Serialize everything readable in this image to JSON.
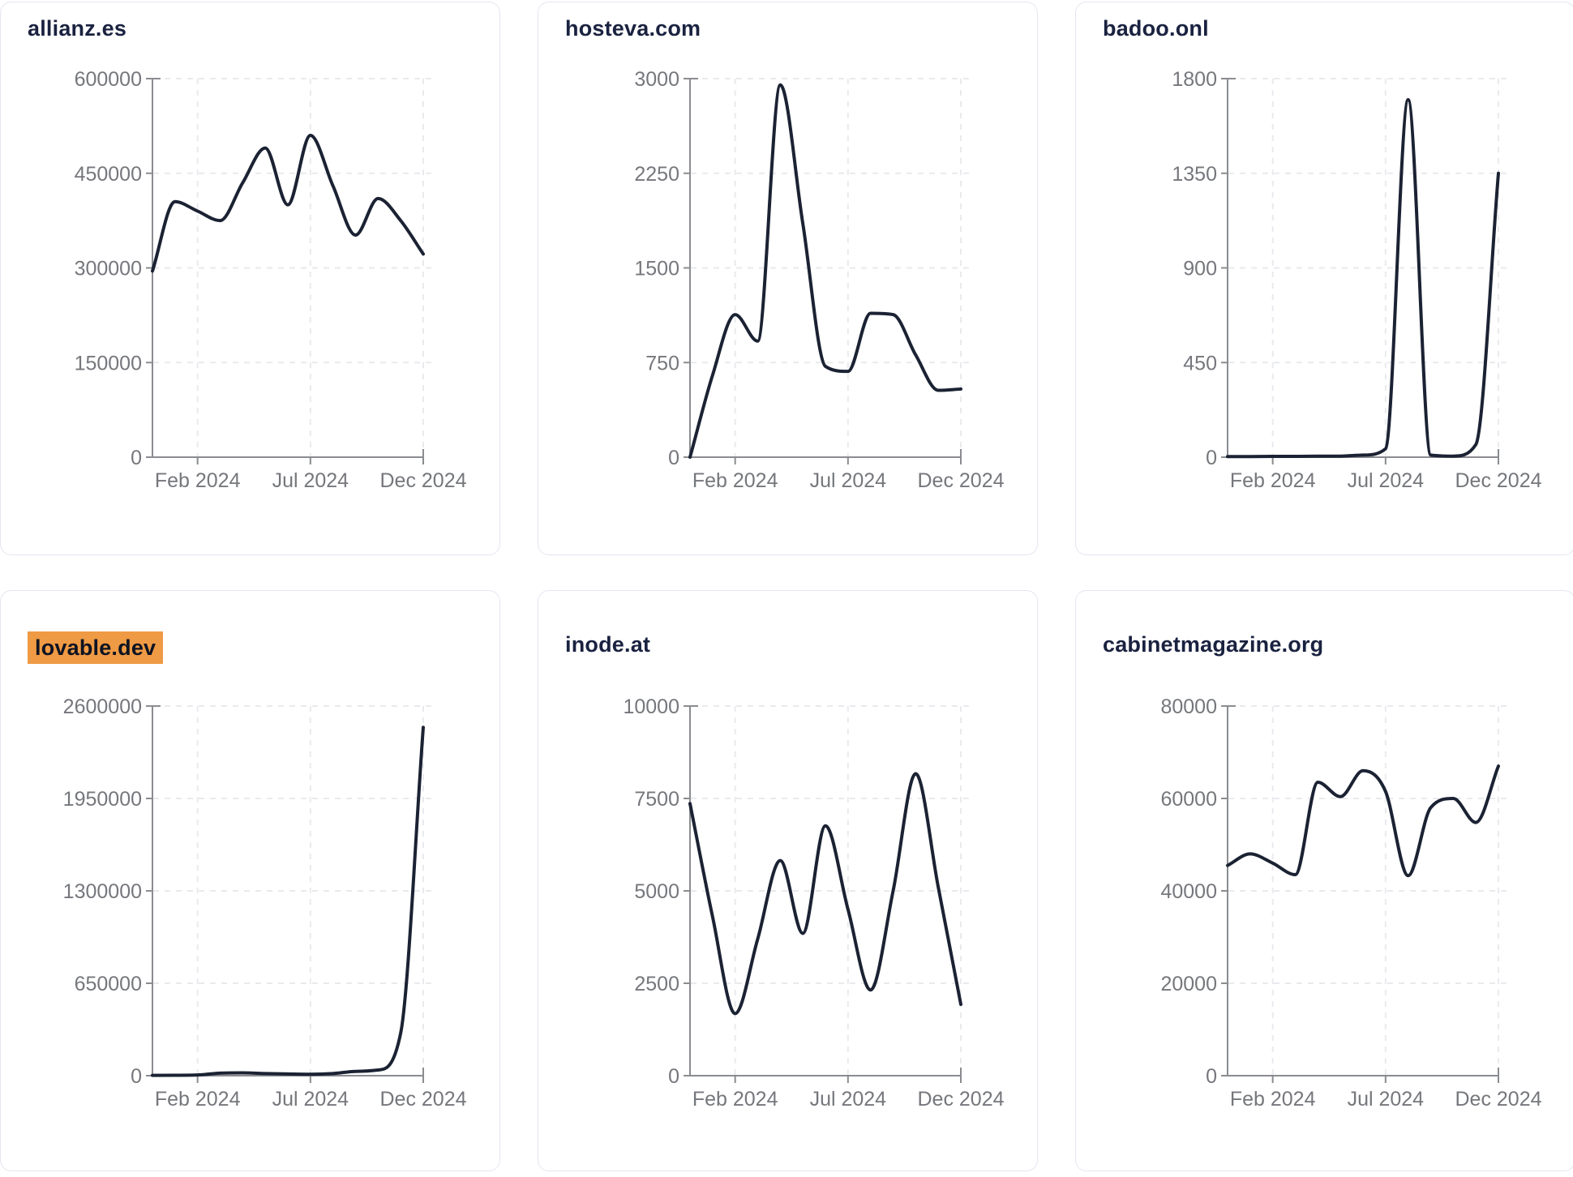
{
  "page": {
    "background": "#ffffff",
    "description_x_axis": "Dec 2023 through Dec 2024, monthly points"
  },
  "colors": {
    "line": "#1b2233",
    "title": "#1a2240",
    "tick_label": "#75777c",
    "axis": "#8a8c90",
    "grid": "#e9eaee",
    "card_border": "#e4e6f1",
    "highlight_bg": "#ef9a44",
    "highlight_text": "#0c1322"
  },
  "chart_data": [
    {
      "type": "line",
      "title": "allianz.es",
      "highlighted": false,
      "n_points": 13,
      "x_tick_labels": [
        "Feb 2024",
        "Jul 2024",
        "Dec 2024"
      ],
      "x_tick_indices": [
        2,
        7,
        12
      ],
      "y_ticks": [
        0,
        150000,
        300000,
        450000,
        600000
      ],
      "ylim": [
        0,
        600000
      ],
      "grid": "dashed",
      "values": [
        295000,
        405000,
        390000,
        375000,
        435000,
        490000,
        400000,
        510000,
        430000,
        352000,
        410000,
        375000,
        322000
      ]
    },
    {
      "type": "line",
      "title": "hosteva.com",
      "highlighted": false,
      "n_points": 13,
      "x_tick_labels": [
        "Feb 2024",
        "Jul 2024",
        "Dec 2024"
      ],
      "x_tick_indices": [
        2,
        7,
        12
      ],
      "y_ticks": [
        0,
        750,
        1500,
        2250,
        3000
      ],
      "ylim": [
        0,
        3000
      ],
      "grid": "dashed",
      "values": [
        0,
        650,
        1130,
        920,
        2950,
        1850,
        720,
        680,
        1140,
        1130,
        810,
        530,
        540
      ]
    },
    {
      "type": "line",
      "title": "badoo.onl",
      "highlighted": false,
      "n_points": 13,
      "x_tick_labels": [
        "Feb 2024",
        "Jul 2024",
        "Dec 2024"
      ],
      "x_tick_indices": [
        2,
        7,
        12
      ],
      "y_ticks": [
        0,
        450,
        900,
        1350,
        1800
      ],
      "ylim": [
        0,
        1800
      ],
      "grid": "dashed",
      "values": [
        3,
        3,
        4,
        4,
        5,
        5,
        10,
        40,
        1700,
        10,
        5,
        60,
        1350
      ]
    },
    {
      "type": "line",
      "title": "lovable.dev",
      "highlighted": true,
      "n_points": 13,
      "x_tick_labels": [
        "Feb 2024",
        "Jul 2024",
        "Dec 2024"
      ],
      "x_tick_indices": [
        2,
        7,
        12
      ],
      "y_ticks": [
        0,
        650000,
        1300000,
        1950000,
        2600000
      ],
      "ylim": [
        0,
        2600000
      ],
      "grid": "dashed",
      "values": [
        2000,
        3000,
        5000,
        18000,
        20000,
        15000,
        12000,
        10000,
        15000,
        30000,
        40000,
        300000,
        2450000
      ]
    },
    {
      "type": "line",
      "title": "inode.at",
      "highlighted": false,
      "n_points": 13,
      "x_tick_labels": [
        "Feb 2024",
        "Jul 2024",
        "Dec 2024"
      ],
      "x_tick_indices": [
        2,
        7,
        12
      ],
      "y_ticks": [
        0,
        2500,
        5000,
        7500,
        10000
      ],
      "ylim": [
        0,
        10000
      ],
      "grid": "dashed",
      "values": [
        7360,
        4300,
        1680,
        3700,
        5820,
        3850,
        6760,
        4500,
        2320,
        5000,
        8170,
        5100,
        1930
      ]
    },
    {
      "type": "line",
      "title": "cabinetmagazine.org",
      "highlighted": false,
      "n_points": 13,
      "x_tick_labels": [
        "Feb 2024",
        "Jul 2024",
        "Dec 2024"
      ],
      "x_tick_indices": [
        2,
        7,
        12
      ],
      "y_ticks": [
        0,
        20000,
        40000,
        60000,
        80000
      ],
      "ylim": [
        0,
        80000
      ],
      "grid": "dashed",
      "values": [
        45500,
        48000,
        46000,
        43500,
        63500,
        60400,
        66000,
        61500,
        43300,
        58000,
        60000,
        54800,
        67000
      ]
    }
  ]
}
